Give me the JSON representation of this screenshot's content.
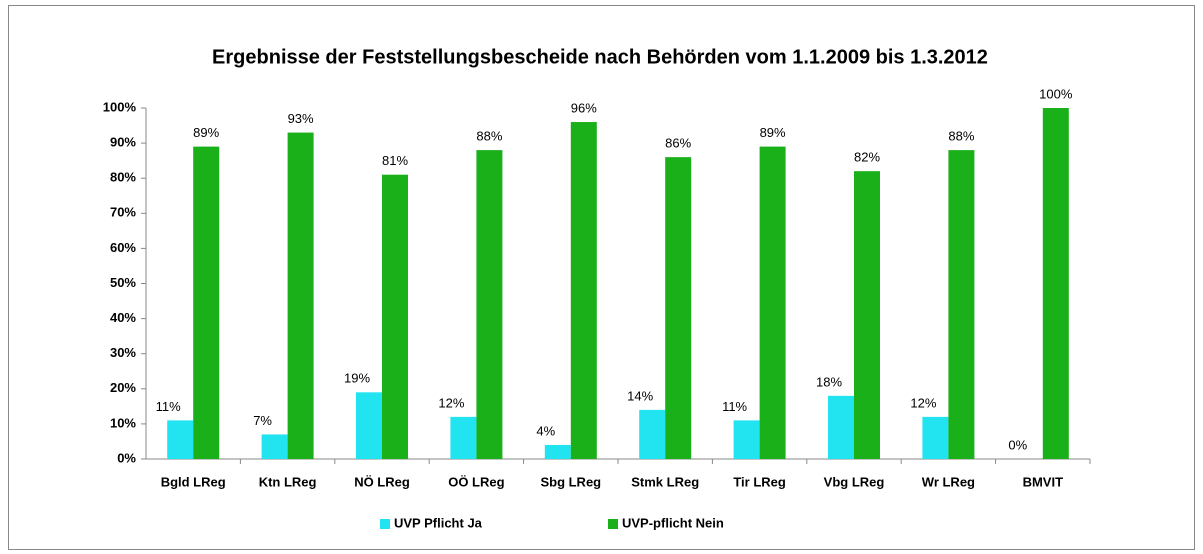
{
  "chart_data": {
    "type": "bar",
    "title": "Ergebnisse der Feststellungsbescheide nach Behörden vom 1.1.2009 bis 1.3.2012",
    "categories": [
      "Bgld LReg",
      "Ktn LReg",
      "NÖ LReg",
      "OÖ LReg",
      "Sbg LReg",
      "Stmk LReg",
      "Tir LReg",
      "Vbg LReg",
      "Wr LReg",
      "BMVIT"
    ],
    "series": [
      {
        "name": "UVP Pflicht Ja",
        "color": "#22e4f0",
        "values": [
          11,
          7,
          19,
          12,
          4,
          14,
          11,
          18,
          12,
          0
        ],
        "value_labels": [
          "11%",
          "7%",
          "19%",
          "12%",
          "4%",
          "14%",
          "11%",
          "18%",
          "12%",
          "0%"
        ]
      },
      {
        "name": "UVP-pflicht Nein",
        "color": "#19b019",
        "values": [
          89,
          93,
          81,
          88,
          96,
          86,
          89,
          82,
          88,
          100
        ],
        "value_labels": [
          "89%",
          "93%",
          "81%",
          "88%",
          "96%",
          "86%",
          "89%",
          "82%",
          "88%",
          "100%"
        ]
      }
    ],
    "ylim": [
      0,
      100
    ],
    "yticks": [
      {
        "value": 0,
        "label": "0%"
      },
      {
        "value": 10,
        "label": "10%"
      },
      {
        "value": 20,
        "label": "20%"
      },
      {
        "value": 30,
        "label": "30%"
      },
      {
        "value": 40,
        "label": "40%"
      },
      {
        "value": 50,
        "label": "50%"
      },
      {
        "value": 60,
        "label": "60%"
      },
      {
        "value": 70,
        "label": "70%"
      },
      {
        "value": 80,
        "label": "80%"
      },
      {
        "value": 90,
        "label": "90%"
      },
      {
        "value": 100,
        "label": "100%"
      }
    ],
    "grid": false,
    "legend": "bottom"
  }
}
